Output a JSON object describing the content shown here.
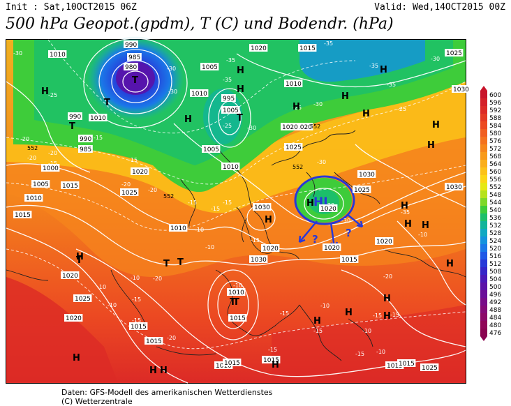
{
  "header": {
    "init": "Init : Sat,10OCT2015 06Z",
    "valid": "Valid: Wed,14OCT2015 00Z",
    "title": "500 hPa Geopot.(gpdm), T (C) und Bodendr. (hPa)"
  },
  "legend": {
    "values": [
      "600",
      "596",
      "592",
      "588",
      "584",
      "580",
      "576",
      "572",
      "568",
      "564",
      "560",
      "556",
      "552",
      "548",
      "544",
      "540",
      "536",
      "532",
      "528",
      "524",
      "520",
      "516",
      "512",
      "508",
      "504",
      "500",
      "496",
      "492",
      "488",
      "484",
      "480",
      "476"
    ],
    "colors": [
      "#c8142a",
      "#d42028",
      "#dc2a26",
      "#e43a24",
      "#ec4a22",
      "#f05e20",
      "#f4721e",
      "#f6861c",
      "#f89a1a",
      "#faae1a",
      "#fcc218",
      "#fcd616",
      "#e6e814",
      "#b6e21a",
      "#7ed828",
      "#3ecc3a",
      "#1cbf6a",
      "#12b49a",
      "#10a8c2",
      "#1492de",
      "#1a78e8",
      "#2058e6",
      "#2838d8",
      "#3624c8",
      "#4a18b8",
      "#5a12a8",
      "#6a0e98",
      "#780c88",
      "#840a78",
      "#8c0868",
      "#900658",
      "#8a0450"
    ]
  },
  "map": {
    "pressure_labels": [
      "1010",
      "990",
      "985",
      "980",
      "1005",
      "1010",
      "1020",
      "1015",
      "1010",
      "1025",
      "1010",
      "1005",
      "995",
      "990",
      "1030",
      "990",
      "985",
      "1000",
      "1005",
      "1015",
      "1010",
      "1015",
      "1020",
      "1025",
      "1005",
      "1020",
      "1010",
      "1020",
      "1025",
      "1030",
      "1025",
      "1030",
      "1030",
      "1030",
      "1020",
      "1020",
      "1015",
      "1020",
      "1010",
      "1020",
      "1025",
      "1015",
      "1015",
      "1020",
      "1010",
      "1015",
      "1015",
      "1010",
      "1015",
      "1015",
      "1015",
      "1025",
      "1020"
    ],
    "temperature_labels": [
      "-30",
      "-25",
      "-30",
      "-30",
      "-35",
      "-35",
      "-35",
      "-35",
      "-35",
      "-30",
      "-25",
      "-25",
      "-30",
      "-30",
      "-25",
      "-20",
      "-20",
      "-20",
      "-15",
      "-15",
      "-15",
      "-20",
      "-20",
      "-15",
      "-15",
      "-15",
      "-10",
      "-10",
      "-15",
      "-10",
      "-10",
      "-10",
      "-15",
      "-15",
      "-20",
      "-20",
      "-10",
      "-15",
      "-15",
      "-10",
      "-15",
      "-20",
      "-30",
      "-30",
      "-30",
      "-35",
      "-10",
      "-15",
      "-10",
      "-10",
      "-15",
      "-15"
    ],
    "height_labels": [
      "552",
      "552",
      "552",
      "552"
    ],
    "center_labels": [
      "T",
      "T",
      "T",
      "T",
      "H",
      "H",
      "H",
      "H",
      "H",
      "H",
      "H",
      "T",
      "T",
      "T",
      "H",
      "H",
      "H",
      "H",
      "H",
      "H",
      "H",
      "T",
      "H",
      "H",
      "H",
      "H",
      "H",
      "H",
      "H",
      "T",
      "H",
      "H",
      "H",
      "H"
    ],
    "annotation": {
      "text": "HL",
      "question_marks": [
        "?",
        "?"
      ]
    }
  },
  "footer": {
    "line1": "Daten: GFS-Modell des amerikanischen Wetterdienstes",
    "line2": "(C) Wetterzentrale"
  }
}
